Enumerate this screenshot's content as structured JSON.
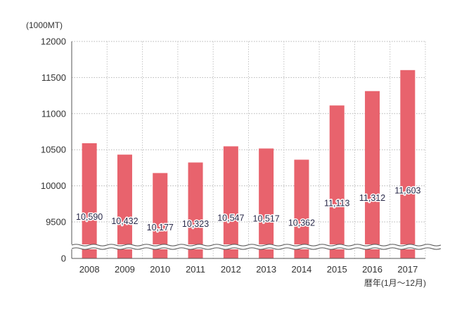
{
  "chart_data": {
    "type": "bar",
    "title": "",
    "ylabel": "(1000MT)",
    "xlabel": "暦年(1月～12月)",
    "categories": [
      "2008",
      "2009",
      "2010",
      "2011",
      "2012",
      "2013",
      "2014",
      "2015",
      "2016",
      "2017"
    ],
    "values": [
      10590,
      10432,
      10177,
      10323,
      10547,
      10517,
      10362,
      11113,
      11312,
      11603
    ],
    "value_labels": [
      "10,590",
      "10,432",
      "10,177",
      "10,323",
      "10,547",
      "10,517",
      "10,362",
      "11,113",
      "11,312",
      "11,603"
    ],
    "ylim": [
      9000,
      12000
    ],
    "axis_break": true,
    "y_ticks": [
      0,
      9500,
      10000,
      10500,
      11000,
      11500,
      12000
    ],
    "y_tick_labels": [
      "0",
      "9500",
      "10000",
      "10500",
      "11000",
      "11500",
      "12000"
    ],
    "grid": "horizontal dotted",
    "legend": "none",
    "bar_color": "#e8636d"
  }
}
